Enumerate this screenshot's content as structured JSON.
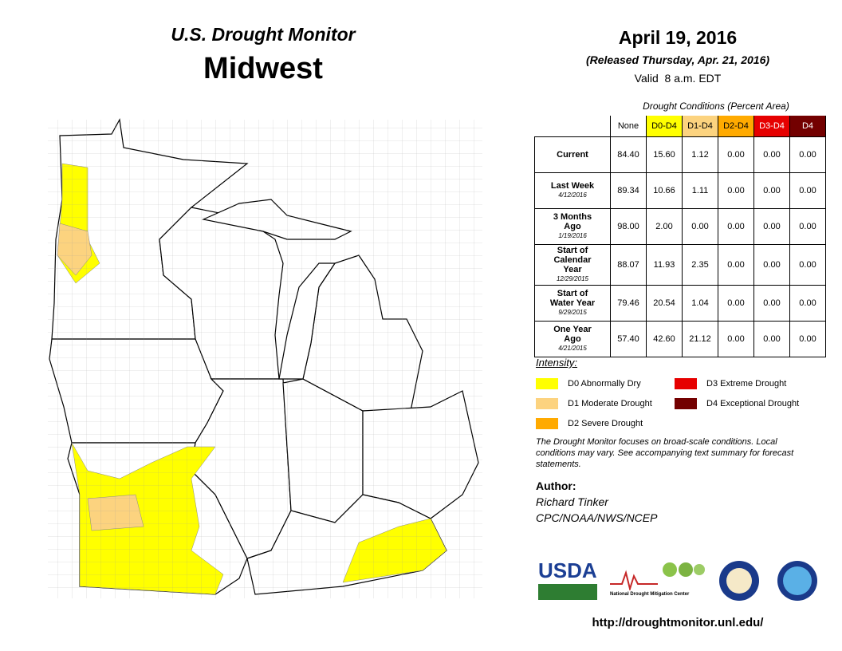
{
  "header": {
    "program": "U.S. Drought Monitor",
    "region": "Midwest"
  },
  "date": {
    "title": "April 19, 2016",
    "released": "(Released Thursday, Apr. 21, 2016)",
    "valid": "Valid  8 a.m. EDT"
  },
  "table": {
    "caption": "Drought Conditions (Percent Area)",
    "columns": [
      "None",
      "D0-D4",
      "D1-D4",
      "D2-D4",
      "D3-D4",
      "D4"
    ],
    "rows": [
      {
        "label": "Current",
        "values": [
          "84.40",
          "15.60",
          "1.12",
          "0.00",
          "0.00",
          "0.00"
        ]
      },
      {
        "label": "Last Week",
        "date": "4/12/2016",
        "values": [
          "89.34",
          "10.66",
          "1.11",
          "0.00",
          "0.00",
          "0.00"
        ]
      },
      {
        "label": "3 Months Ago",
        "date": "1/19/2016",
        "values": [
          "98.00",
          "2.00",
          "0.00",
          "0.00",
          "0.00",
          "0.00"
        ]
      },
      {
        "label": "Start of Calendar Year",
        "date": "12/29/2015",
        "values": [
          "88.07",
          "11.93",
          "2.35",
          "0.00",
          "0.00",
          "0.00"
        ]
      },
      {
        "label": "Start of Water Year",
        "date": "9/29/2015",
        "values": [
          "79.46",
          "20.54",
          "1.04",
          "0.00",
          "0.00",
          "0.00"
        ]
      },
      {
        "label": "One Year Ago",
        "date": "4/21/2015",
        "values": [
          "57.40",
          "42.60",
          "21.12",
          "0.00",
          "0.00",
          "0.00"
        ]
      }
    ]
  },
  "legend": {
    "title": "Intensity:",
    "items": [
      {
        "label": "D0 Abnormally Dry",
        "color": "#ffff00"
      },
      {
        "label": "D1 Moderate Drought",
        "color": "#fcd37f"
      },
      {
        "label": "D2 Severe Drought",
        "color": "#ffaa00"
      },
      {
        "label": "D3 Extreme Drought",
        "color": "#e60000"
      },
      {
        "label": "D4 Exceptional Drought",
        "color": "#730000"
      }
    ]
  },
  "note": "The Drought Monitor focuses on broad-scale conditions. Local conditions may vary. See accompanying text summary for forecast statements.",
  "author": {
    "heading": "Author:",
    "name": "Richard Tinker",
    "org": "CPC/NOAA/NWS/NCEP"
  },
  "logos": {
    "usda": "USDA",
    "ndmc": "National Drought Mitigation Center"
  },
  "url": "http://droughtmonitor.unl.edu/"
}
